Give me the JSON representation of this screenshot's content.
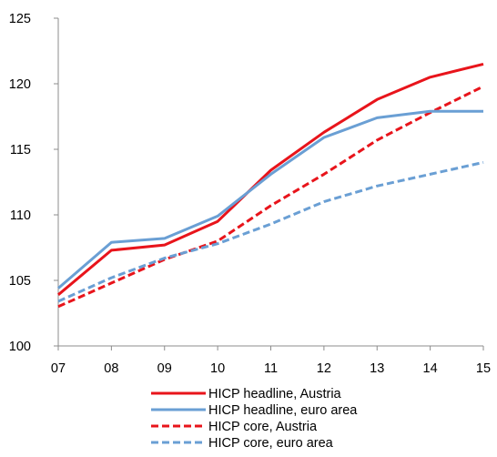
{
  "chart_data": {
    "type": "line",
    "categories": [
      "07",
      "08",
      "09",
      "10",
      "11",
      "12",
      "13",
      "14",
      "15"
    ],
    "ylim": [
      100,
      125
    ],
    "yticks": [
      100,
      105,
      110,
      115,
      120,
      125
    ],
    "title": "",
    "xlabel": "",
    "ylabel": "",
    "grid": false,
    "legend_position": "bottom",
    "series": [
      {
        "name": "HICP headline, Austria",
        "color": "#e8141b",
        "dash": "solid",
        "values": [
          103.9,
          107.3,
          107.7,
          109.5,
          113.4,
          116.3,
          118.8,
          120.5,
          121.5
        ]
      },
      {
        "name": "HICP headline, euro area",
        "color": "#6a9fd4",
        "dash": "solid",
        "values": [
          104.4,
          107.9,
          108.2,
          109.9,
          113.1,
          115.9,
          117.4,
          117.9,
          117.9
        ]
      },
      {
        "name": "HICP core, Austria",
        "color": "#e8141b",
        "dash": "dashed",
        "values": [
          103.0,
          104.8,
          106.6,
          108.0,
          110.7,
          113.1,
          115.7,
          117.8,
          119.8
        ]
      },
      {
        "name": "HICP core, euro area",
        "color": "#6a9fd4",
        "dash": "dashed",
        "values": [
          103.4,
          105.2,
          106.7,
          107.8,
          109.3,
          111.0,
          112.2,
          113.1,
          114.0
        ]
      }
    ]
  }
}
